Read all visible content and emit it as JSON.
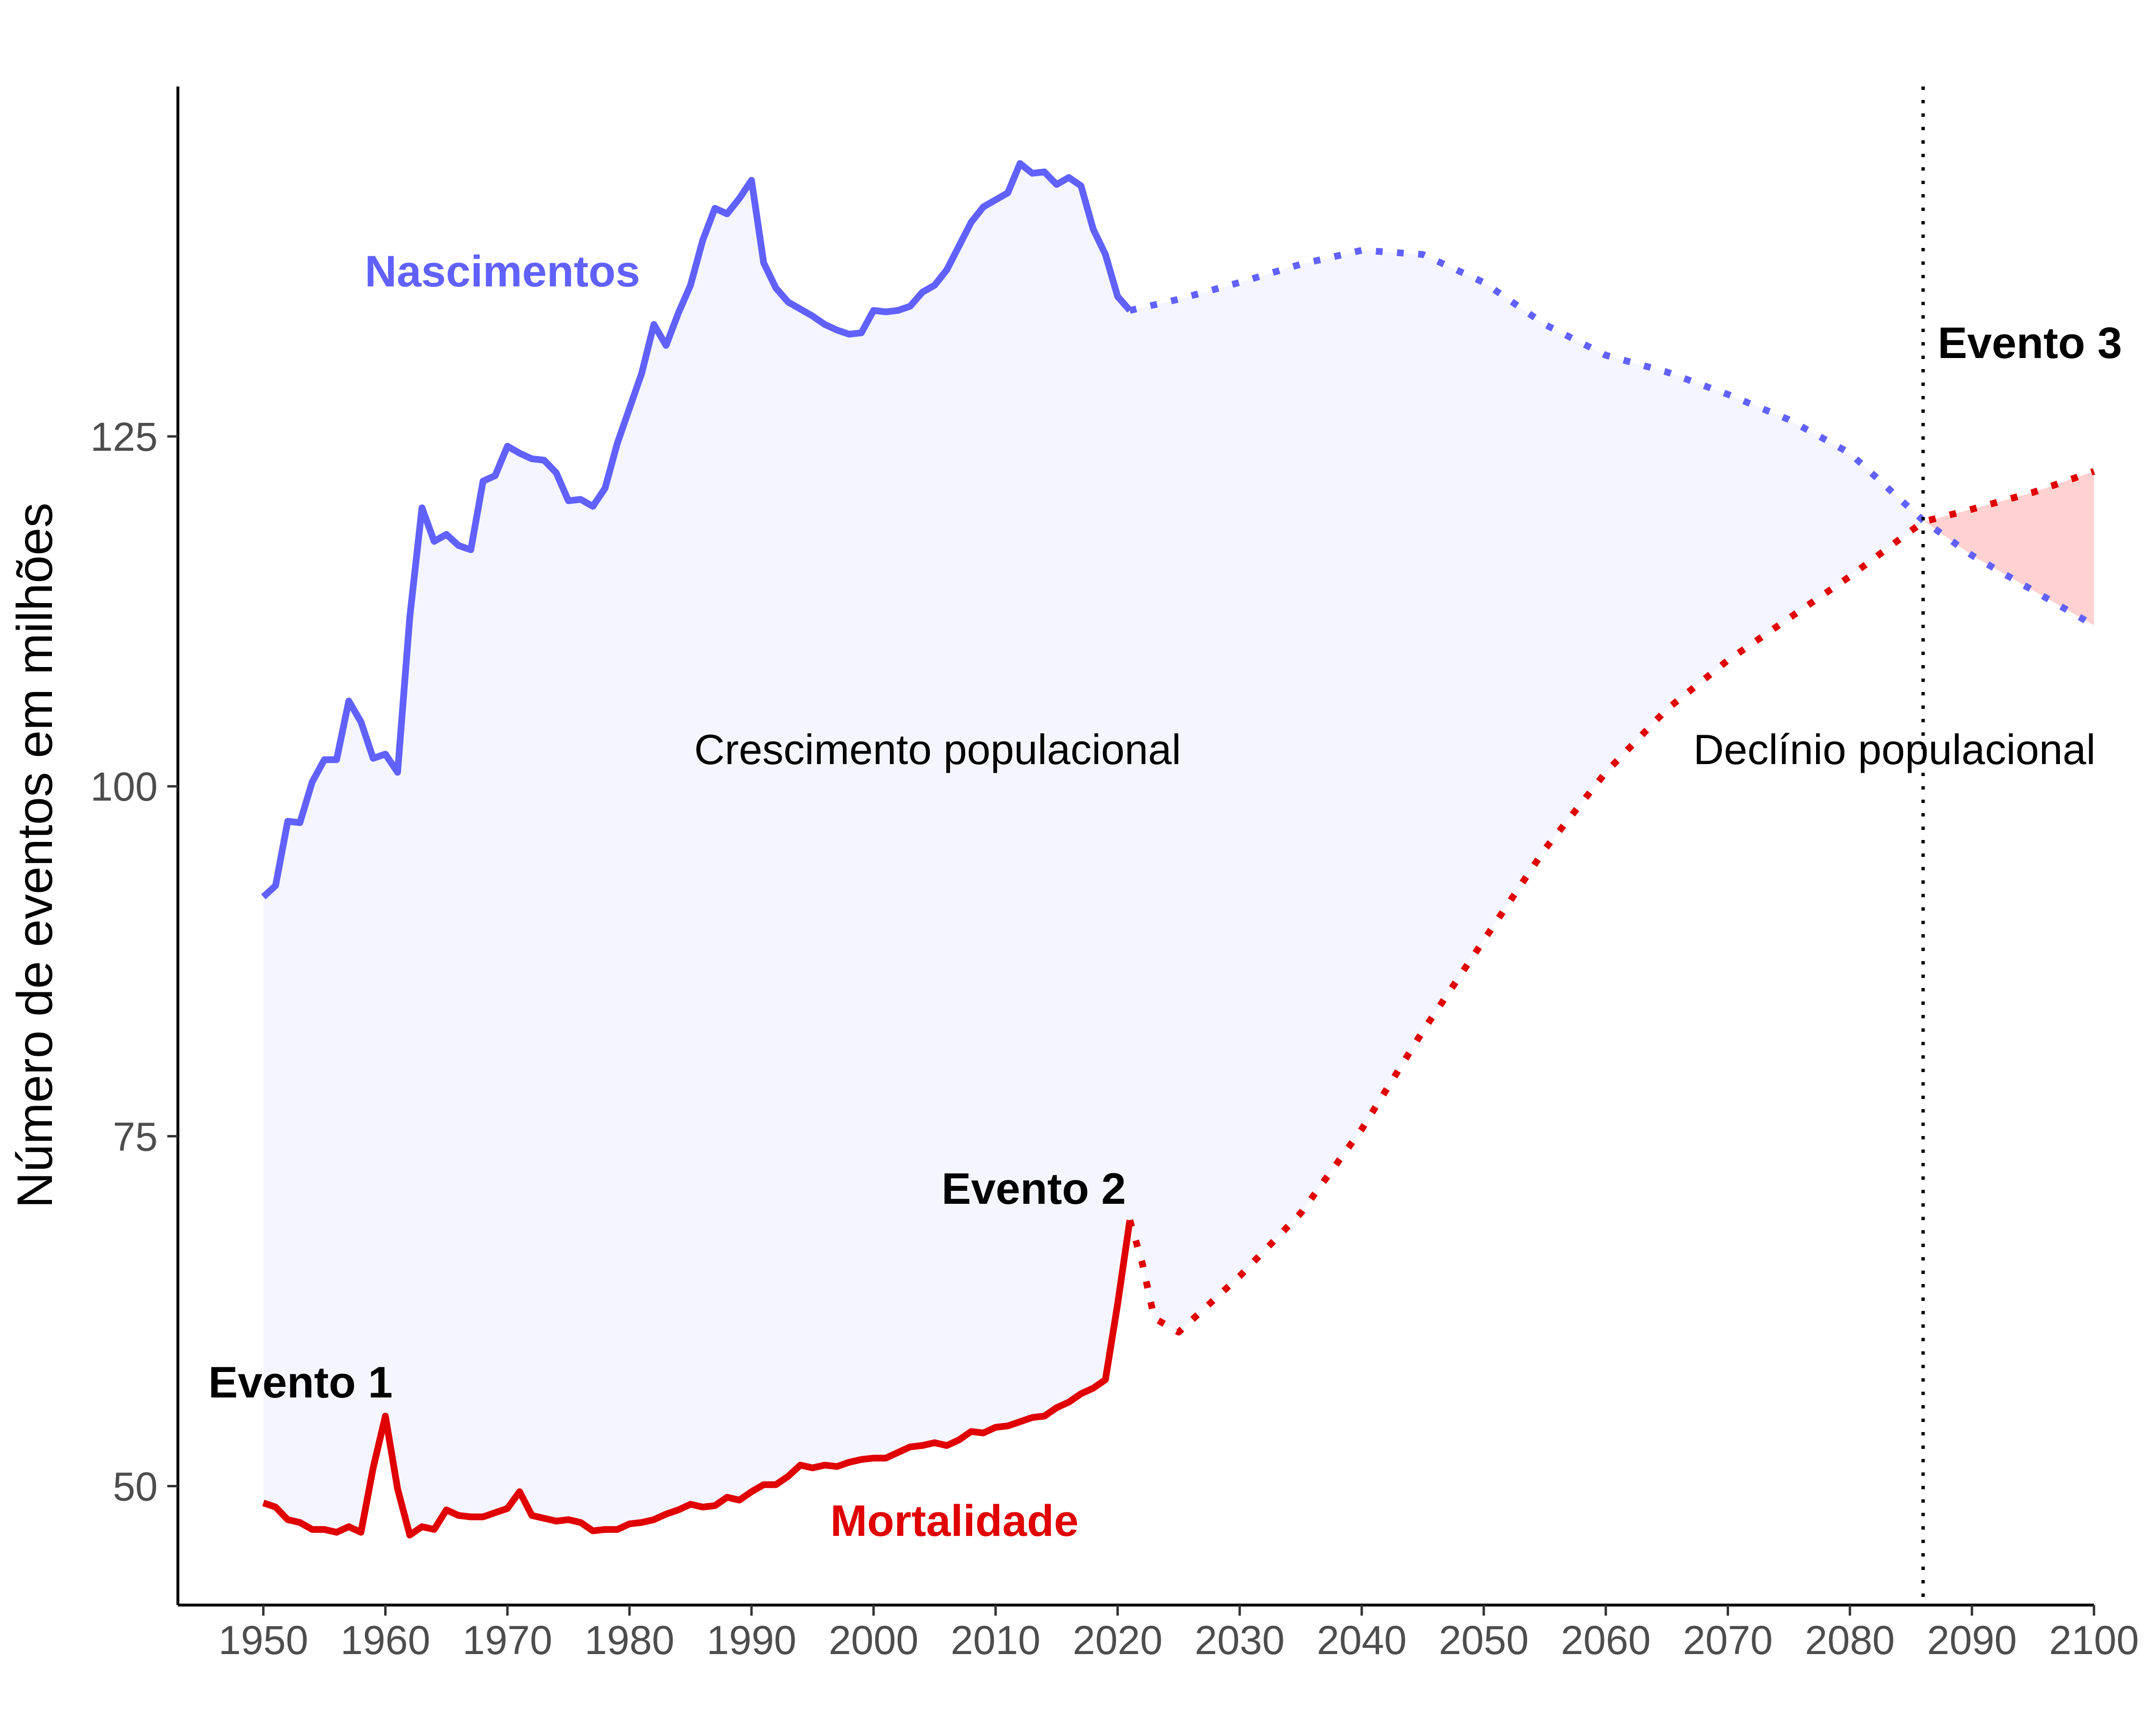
{
  "chart_data": {
    "type": "line",
    "title": "",
    "xlabel": "",
    "ylabel": "Número de eventos em milhões",
    "xlim": [
      1943,
      2100
    ],
    "ylim": [
      41.5,
      150
    ],
    "x_ticks": [
      1950,
      1960,
      1970,
      1980,
      1990,
      2000,
      2010,
      2020,
      2030,
      2040,
      2050,
      2060,
      2070,
      2080,
      2090,
      2100
    ],
    "y_ticks": [
      50,
      75,
      100,
      125
    ],
    "grid": false,
    "legend": "none",
    "colors": {
      "births": "#6161ff",
      "deaths": "#e00000",
      "growth_fill": "#f5f5ff",
      "decline_fill": "#ffd1d1",
      "axis": "#000000",
      "tick_text": "#4d4d4d"
    },
    "series": [
      {
        "name": "Nascimentos",
        "style": "solid",
        "x": [
          1950,
          1951,
          1952,
          1953,
          1954,
          1955,
          1956,
          1957,
          1958,
          1959,
          1960,
          1961,
          1962,
          1963,
          1964,
          1965,
          1966,
          1967,
          1968,
          1969,
          1970,
          1971,
          1972,
          1973,
          1974,
          1975,
          1976,
          1977,
          1978,
          1979,
          1980,
          1981,
          1982,
          1983,
          1984,
          1985,
          1986,
          1987,
          1988,
          1989,
          1990,
          1991,
          1992,
          1993,
          1994,
          1995,
          1996,
          1997,
          1998,
          1999,
          2000,
          2001,
          2002,
          2003,
          2004,
          2005,
          2006,
          2007,
          2008,
          2009,
          2010,
          2011,
          2012,
          2013,
          2014,
          2015,
          2016,
          2017,
          2018,
          2019,
          2020,
          2021
        ],
        "y": [
          92.1,
          92.9,
          97.5,
          97.4,
          100.3,
          101.9,
          101.9,
          106.1,
          104.6,
          102.0,
          102.3,
          101.0,
          112.1,
          119.9,
          117.5,
          118.0,
          117.2,
          116.9,
          121.8,
          122.2,
          124.3,
          123.8,
          123.4,
          123.3,
          122.4,
          120.4,
          120.5,
          120.0,
          121.3,
          124.5,
          127.0,
          129.5,
          133.0,
          131.5,
          133.8,
          135.8,
          139.0,
          141.3,
          140.9,
          142.0,
          143.3,
          137.4,
          135.6,
          134.6,
          134.1,
          133.6,
          133.0,
          132.6,
          132.3,
          132.4,
          134.0,
          133.9,
          134.0,
          134.3,
          135.3,
          135.8,
          136.9,
          138.6,
          140.3,
          141.4,
          141.9,
          142.4,
          144.5,
          143.8,
          143.9,
          143.0,
          143.5,
          142.9,
          139.8,
          138.0,
          135.0,
          134.0
        ]
      },
      {
        "name": "Nascimentos",
        "style": "dotted",
        "x": [
          2021,
          2025,
          2030,
          2035,
          2040,
          2045,
          2050,
          2055,
          2060,
          2065,
          2070,
          2075,
          2080,
          2086,
          2090,
          2095,
          2100
        ],
        "y": [
          134.0,
          134.8,
          136.0,
          137.3,
          138.3,
          138.0,
          136.0,
          133.0,
          130.8,
          129.6,
          128.0,
          126.2,
          123.8,
          119.0,
          116.5,
          114.0,
          111.5
        ]
      },
      {
        "name": "Mortalidade",
        "style": "solid",
        "x": [
          1950,
          1951,
          1952,
          1953,
          1954,
          1955,
          1956,
          1957,
          1958,
          1959,
          1960,
          1961,
          1962,
          1963,
          1964,
          1965,
          1966,
          1967,
          1968,
          1969,
          1970,
          1971,
          1972,
          1973,
          1974,
          1975,
          1976,
          1977,
          1978,
          1979,
          1980,
          1981,
          1982,
          1983,
          1984,
          1985,
          1986,
          1987,
          1988,
          1989,
          1990,
          1991,
          1992,
          1993,
          1994,
          1995,
          1996,
          1997,
          1998,
          1999,
          2000,
          2001,
          2002,
          2003,
          2004,
          2005,
          2006,
          2007,
          2008,
          2009,
          2010,
          2011,
          2012,
          2013,
          2014,
          2015,
          2016,
          2017,
          2018,
          2019,
          2020,
          2021
        ],
        "y": [
          48.8,
          48.5,
          47.6,
          47.4,
          46.9,
          46.9,
          46.7,
          47.1,
          46.7,
          51.3,
          55.0,
          49.8,
          46.5,
          47.1,
          46.9,
          48.3,
          47.9,
          47.8,
          47.8,
          48.1,
          48.4,
          49.6,
          47.9,
          47.7,
          47.5,
          47.6,
          47.4,
          46.8,
          46.9,
          46.9,
          47.3,
          47.4,
          47.6,
          48.0,
          48.3,
          48.7,
          48.5,
          48.6,
          49.2,
          49.0,
          49.6,
          50.1,
          50.1,
          50.7,
          51.5,
          51.3,
          51.5,
          51.4,
          51.7,
          51.9,
          52.0,
          52.0,
          52.4,
          52.8,
          52.9,
          53.1,
          52.9,
          53.3,
          53.9,
          53.8,
          54.2,
          54.3,
          54.6,
          54.9,
          55.0,
          55.6,
          56.0,
          56.6,
          57.0,
          57.6,
          63.0,
          69.0
        ]
      },
      {
        "name": "Mortalidade",
        "style": "dotted",
        "x": [
          2021,
          2022,
          2023,
          2025,
          2030,
          2035,
          2040,
          2045,
          2050,
          2055,
          2060,
          2065,
          2070,
          2075,
          2080,
          2086,
          2090,
          2095,
          2100
        ],
        "y": [
          69.0,
          66.0,
          62.0,
          61.0,
          65.0,
          69.5,
          75.5,
          82.5,
          89.0,
          95.5,
          101.0,
          105.5,
          109.0,
          112.0,
          115.0,
          118.9,
          119.8,
          121.0,
          122.5
        ]
      }
    ],
    "vline": {
      "x": 2086,
      "style": "dotted"
    },
    "annotations": {
      "births_label": "Nascimentos",
      "deaths_label": "Mortalidade",
      "growth_label": "Crescimento populacional",
      "decline_label": "Declínio populacional",
      "event1": "Evento 1",
      "event2": "Evento 2",
      "event3": "Evento 3"
    }
  }
}
